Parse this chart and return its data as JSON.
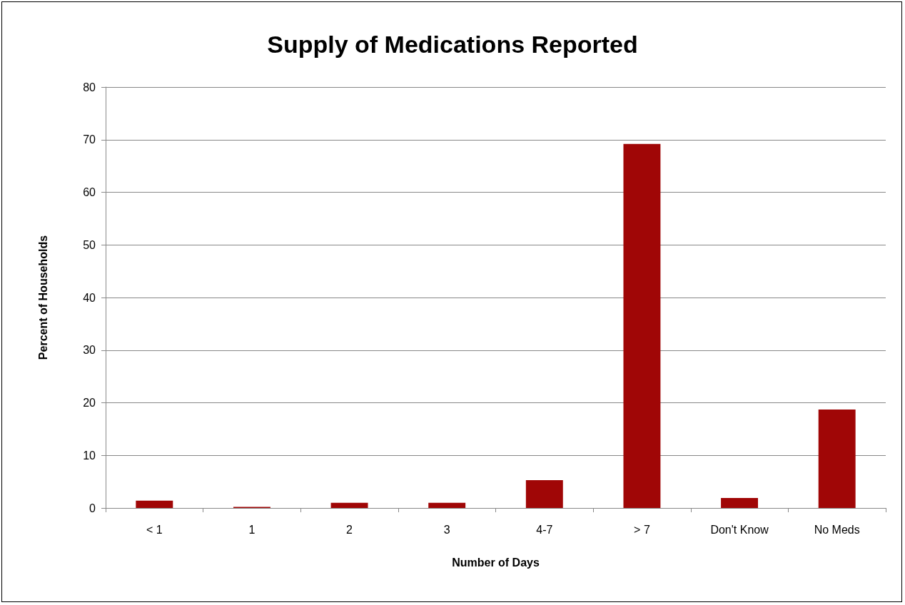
{
  "chart_data": {
    "type": "bar",
    "title": "Supply of Medications Reported",
    "xlabel": "Number of Days",
    "ylabel": "Percent of Households",
    "categories": [
      "< 1",
      "1",
      "2",
      "3",
      "4-7",
      "> 7",
      "Don't Know",
      "No Meds"
    ],
    "values": [
      1.4,
      0.2,
      1.0,
      1.0,
      5.3,
      69.2,
      1.9,
      18.7
    ],
    "color": "#a00606",
    "ylim": [
      0,
      80
    ],
    "yticks": [
      0,
      10,
      20,
      30,
      40,
      50,
      60,
      70,
      80
    ],
    "grid": "y"
  }
}
